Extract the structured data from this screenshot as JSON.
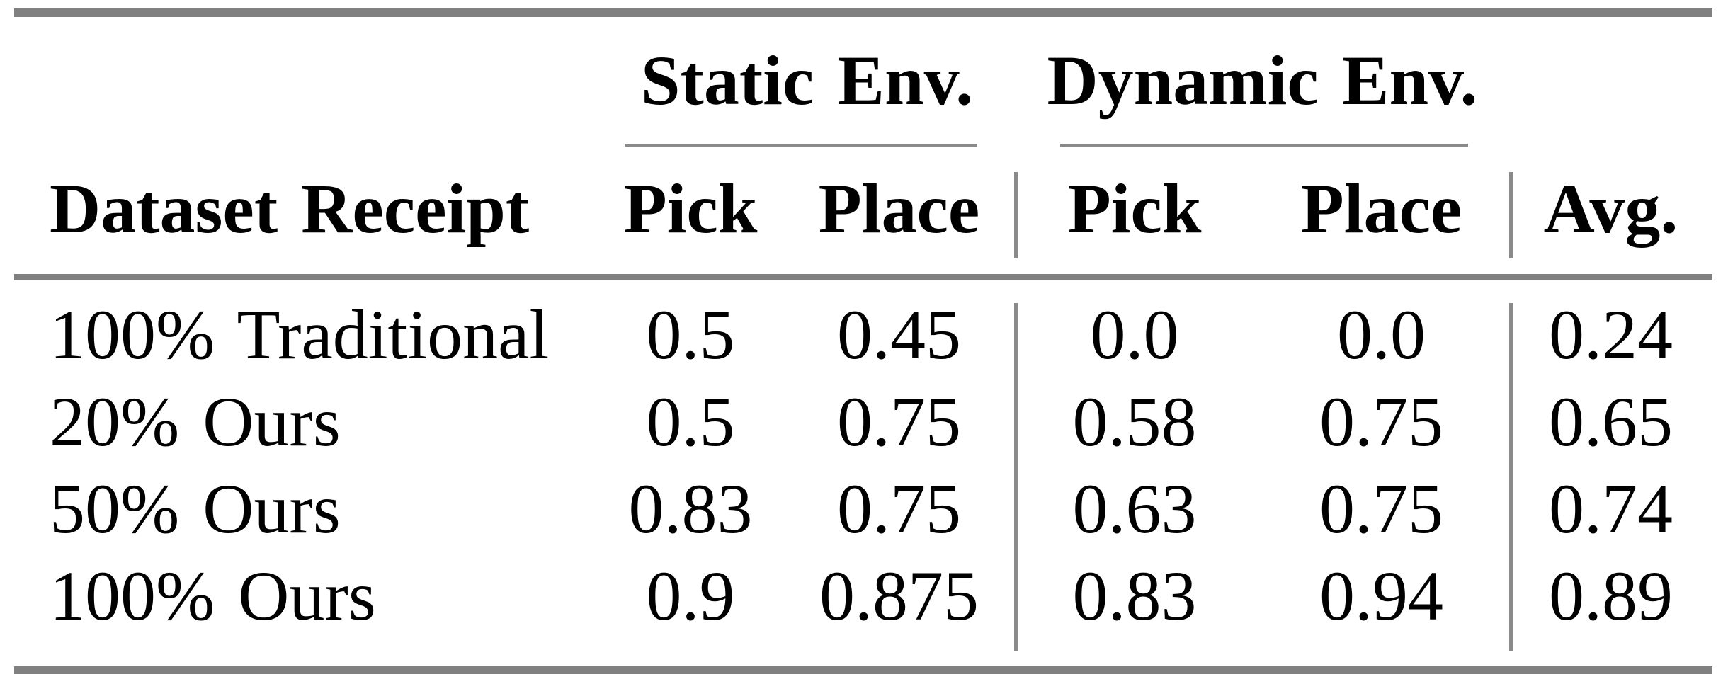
{
  "table": {
    "header": {
      "row_label": "Dataset Receipt",
      "groups": [
        {
          "label": "Static Env.",
          "columns": [
            "Pick",
            "Place"
          ]
        },
        {
          "label": "Dynamic Env.",
          "columns": [
            "Pick",
            "Place"
          ]
        }
      ],
      "avg_label": "Avg."
    },
    "rows": [
      {
        "label": "100% Traditional",
        "values": [
          "0.5",
          "0.45",
          "0.0",
          "0.0",
          "0.24"
        ]
      },
      {
        "label": "20% Ours",
        "values": [
          "0.5",
          "0.75",
          "0.58",
          "0.75",
          "0.65"
        ]
      },
      {
        "label": "50% Ours",
        "values": [
          "0.83",
          "0.75",
          "0.63",
          "0.75",
          "0.74"
        ]
      },
      {
        "label": "100% Ours",
        "values": [
          "0.9",
          "0.875",
          "0.83",
          "0.94",
          "0.89"
        ]
      }
    ]
  },
  "colors": {
    "rule": "#808080",
    "text": "#000000",
    "background": "#ffffff"
  },
  "chart_data": {
    "type": "table",
    "columns": [
      "Dataset Receipt",
      "Static Env. Pick",
      "Static Env. Place",
      "Dynamic Env. Pick",
      "Dynamic Env. Place",
      "Avg."
    ],
    "rows": [
      [
        "100% Traditional",
        0.5,
        0.45,
        0.0,
        0.0,
        0.24
      ],
      [
        "20% Ours",
        0.5,
        0.75,
        0.58,
        0.75,
        0.65
      ],
      [
        "50% Ours",
        0.83,
        0.75,
        0.63,
        0.75,
        0.74
      ],
      [
        "100% Ours",
        0.9,
        0.875,
        0.83,
        0.94,
        0.89
      ]
    ],
    "legend_position": "none",
    "grid": false
  }
}
